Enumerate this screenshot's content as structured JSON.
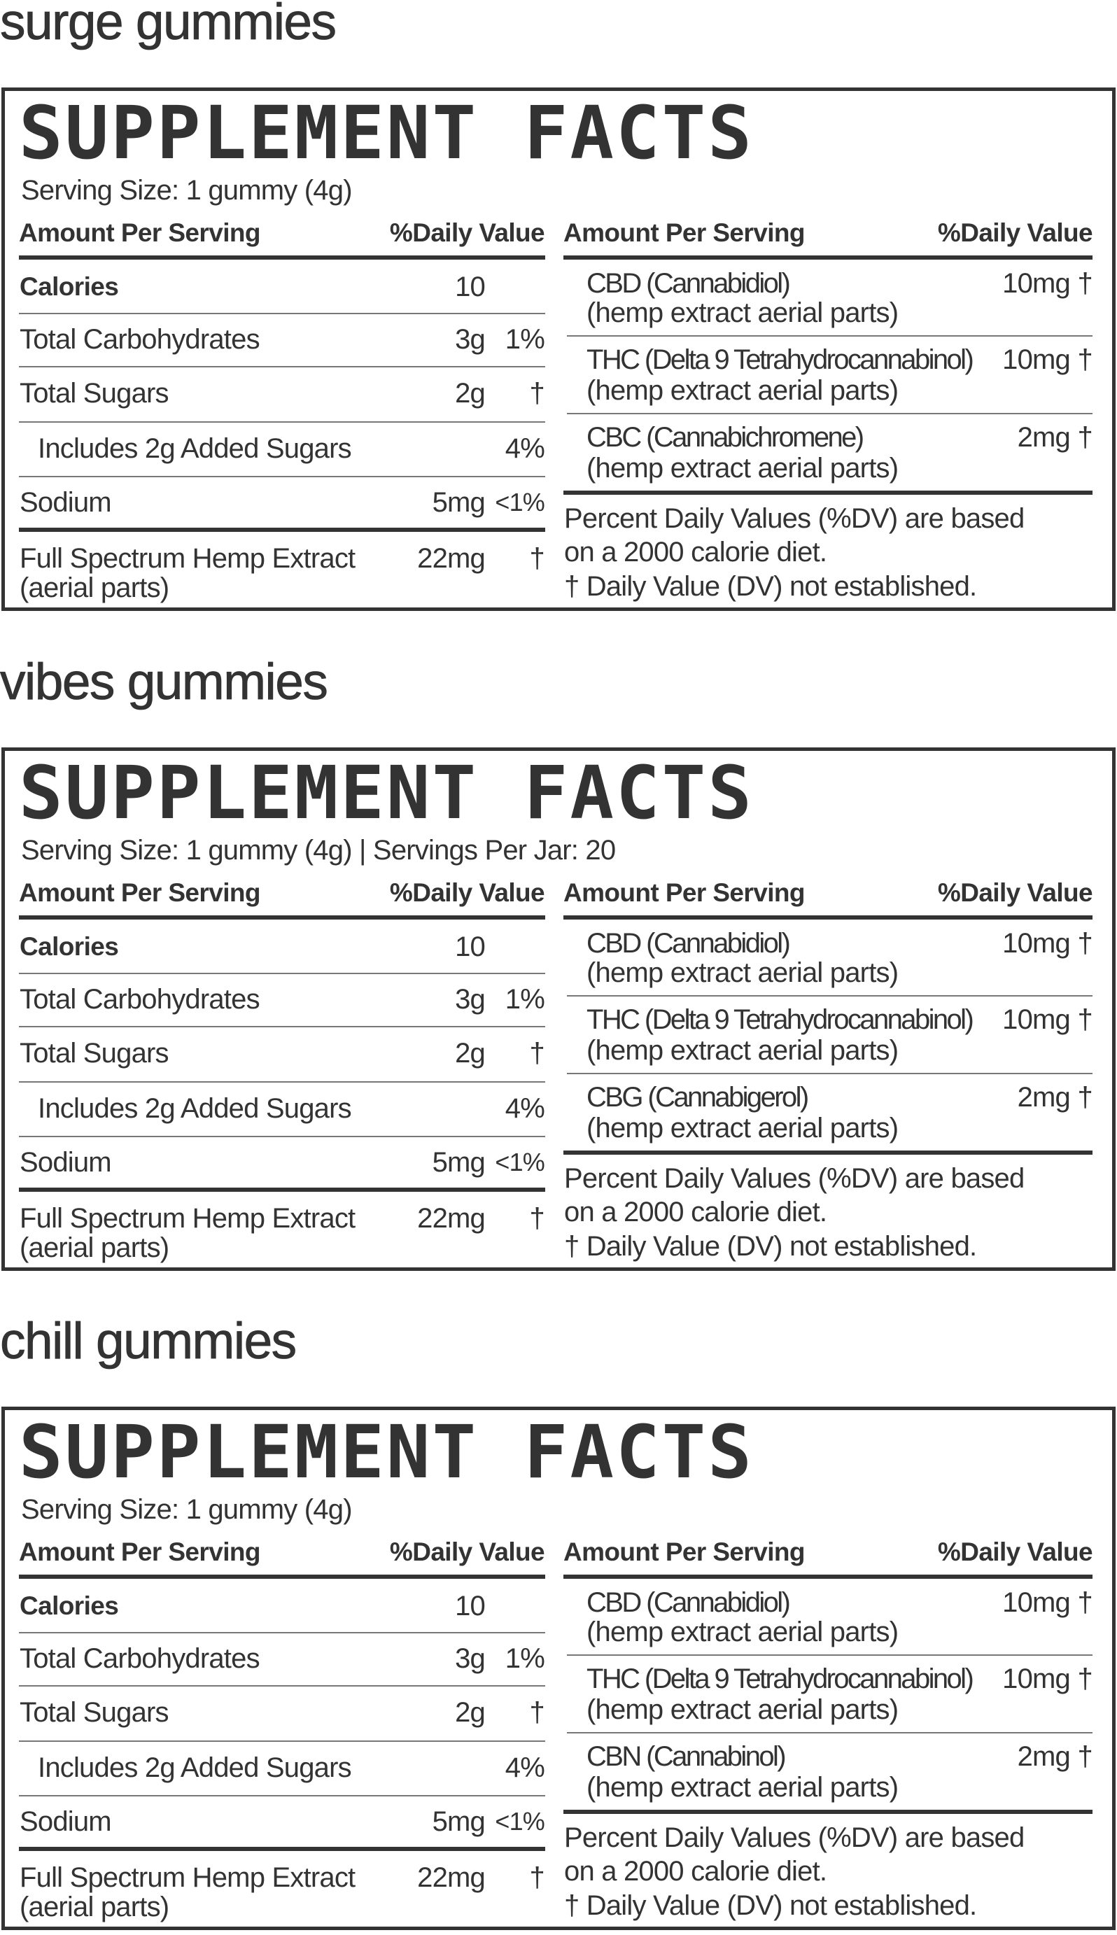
{
  "common": {
    "title": "SUPPLEMENT FACTS",
    "amount_header": "Amount Per Serving",
    "dv_header": "%Daily Value",
    "nutrients": [
      {
        "label": "Calories",
        "amount": "10",
        "dv": "",
        "bold": true
      },
      {
        "label": "Total Carbohydrates",
        "amount": "3g",
        "dv": "1%"
      },
      {
        "label": "Total Sugars",
        "amount": "2g",
        "dv": "†"
      },
      {
        "label": "Includes 2g Added Sugars",
        "amount": "",
        "dv": "4%",
        "indent": true
      },
      {
        "label": "Sodium",
        "amount": "5mg",
        "dv": "<1%"
      }
    ],
    "hemp": {
      "label_line1": "Full Spectrum Hemp Extract",
      "label_line2": "(aerial parts)",
      "amount": "22mg",
      "dv": "†"
    },
    "footnote_line1": "Percent Daily Values (%DV) are based",
    "footnote_line2": "on a 2000 calorie diet.",
    "footnote_line3": "† Daily Value (DV) not established."
  },
  "panels": [
    {
      "name": "surge gummies",
      "serving": "Serving Size: 1 gummy (4g)",
      "cannabinoids": [
        {
          "name": "CBD (Cannabidiol)",
          "source": "(hemp extract aerial parts)",
          "amount": "10mg",
          "dv": "†"
        },
        {
          "name": "THC (Delta 9 Tetrahydrocannabinol)",
          "source": "(hemp extract aerial parts)",
          "amount": "10mg",
          "dv": "†"
        },
        {
          "name": "CBC (Cannabichromene)",
          "source": "(hemp extract aerial parts)",
          "amount": "2mg",
          "dv": "†"
        }
      ]
    },
    {
      "name": "vibes gummies",
      "serving": "Serving Size: 1 gummy (4g)   |   Servings Per Jar: 20",
      "cannabinoids": [
        {
          "name": "CBD (Cannabidiol)",
          "source": "(hemp extract aerial parts)",
          "amount": "10mg",
          "dv": "†"
        },
        {
          "name": "THC (Delta 9 Tetrahydrocannabinol)",
          "source": "(hemp extract aerial parts)",
          "amount": "10mg",
          "dv": "†"
        },
        {
          "name": "CBG (Cannabigerol)",
          "source": "(hemp extract aerial parts)",
          "amount": "2mg",
          "dv": "†"
        }
      ]
    },
    {
      "name": "chill gummies",
      "serving": "Serving Size: 1 gummy (4g)",
      "cannabinoids": [
        {
          "name": "CBD (Cannabidiol)",
          "source": "(hemp extract aerial parts)",
          "amount": "10mg",
          "dv": "†"
        },
        {
          "name": "THC (Delta 9 Tetrahydrocannabinol)",
          "source": "(hemp extract aerial parts)",
          "amount": "10mg",
          "dv": "†"
        },
        {
          "name": "CBN (Cannabinol)",
          "source": "(hemp extract aerial parts)",
          "amount": "2mg",
          "dv": "†"
        }
      ]
    }
  ]
}
